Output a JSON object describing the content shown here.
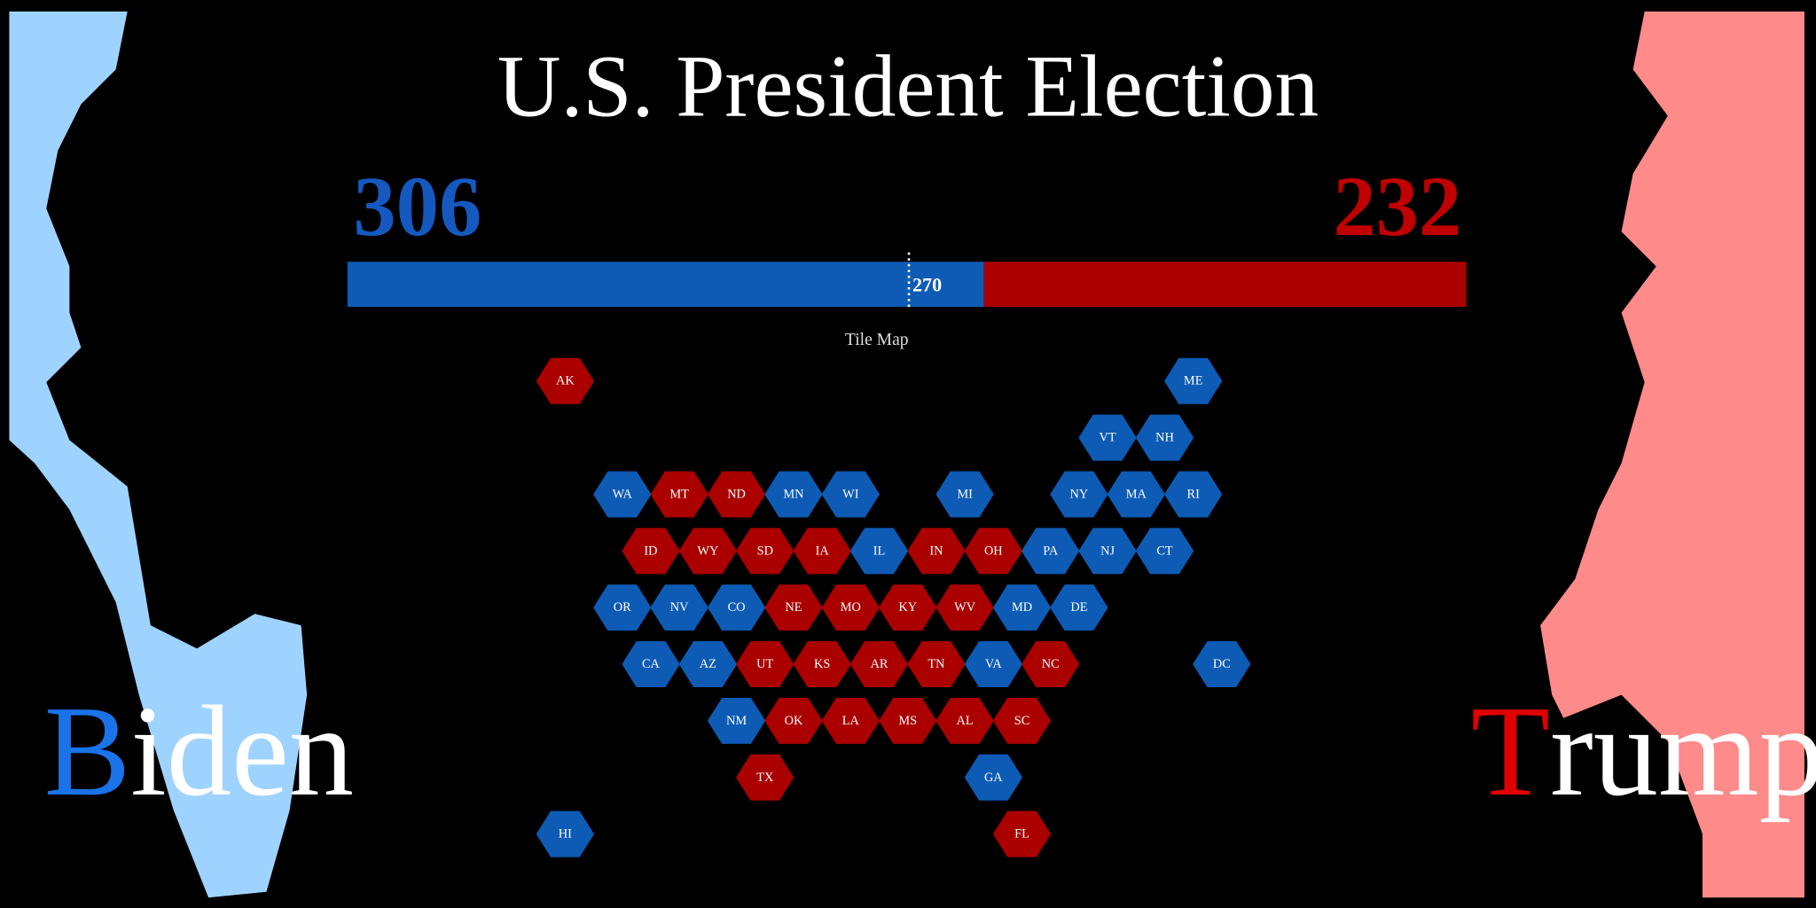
{
  "header": {
    "title": "U.S. President Election"
  },
  "candidates": [
    {
      "name": "Biden",
      "votes": 306,
      "bar_color": "#0d5bb5",
      "accent_color": "#1a73e8",
      "portrait_color": "#9fd3ff"
    },
    {
      "name": "Trump",
      "votes": 232,
      "bar_color": "#aa0000",
      "accent_color": "#e00000",
      "portrait_color": "#ff8a8a"
    }
  ],
  "threshold": {
    "value": 270
  },
  "map": {
    "title": "Tile Map",
    "tiles": [
      {
        "label": "AK",
        "color": "#aa0000"
      },
      {
        "label": "ME",
        "color": "#0d5bb5"
      },
      {
        "label": "VT",
        "color": "#0d5bb5"
      },
      {
        "label": "NH",
        "color": "#0d5bb5"
      },
      {
        "label": "WA",
        "color": "#0d5bb5"
      },
      {
        "label": "MT",
        "color": "#aa0000"
      },
      {
        "label": "ND",
        "color": "#aa0000"
      },
      {
        "label": "MN",
        "color": "#0d5bb5"
      },
      {
        "label": "WI",
        "color": "#0d5bb5"
      },
      {
        "label": "MI",
        "color": "#0d5bb5"
      },
      {
        "label": "NY",
        "color": "#0d5bb5"
      },
      {
        "label": "MA",
        "color": "#0d5bb5"
      },
      {
        "label": "RI",
        "color": "#0d5bb5"
      },
      {
        "label": "ID",
        "color": "#aa0000"
      },
      {
        "label": "WY",
        "color": "#aa0000"
      },
      {
        "label": "SD",
        "color": "#aa0000"
      },
      {
        "label": "IA",
        "color": "#aa0000"
      },
      {
        "label": "IL",
        "color": "#0d5bb5"
      },
      {
        "label": "IN",
        "color": "#aa0000"
      },
      {
        "label": "OH",
        "color": "#aa0000"
      },
      {
        "label": "PA",
        "color": "#0d5bb5"
      },
      {
        "label": "NJ",
        "color": "#0d5bb5"
      },
      {
        "label": "CT",
        "color": "#0d5bb5"
      },
      {
        "label": "OR",
        "color": "#0d5bb5"
      },
      {
        "label": "NV",
        "color": "#0d5bb5"
      },
      {
        "label": "CO",
        "color": "#0d5bb5"
      },
      {
        "label": "NE",
        "color": "#aa0000"
      },
      {
        "label": "MO",
        "color": "#aa0000"
      },
      {
        "label": "KY",
        "color": "#aa0000"
      },
      {
        "label": "WV",
        "color": "#aa0000"
      },
      {
        "label": "MD",
        "color": "#0d5bb5"
      },
      {
        "label": "DE",
        "color": "#0d5bb5"
      },
      {
        "label": "CA",
        "color": "#0d5bb5"
      },
      {
        "label": "AZ",
        "color": "#0d5bb5"
      },
      {
        "label": "UT",
        "color": "#aa0000"
      },
      {
        "label": "KS",
        "color": "#aa0000"
      },
      {
        "label": "AR",
        "color": "#aa0000"
      },
      {
        "label": "TN",
        "color": "#aa0000"
      },
      {
        "label": "VA",
        "color": "#0d5bb5"
      },
      {
        "label": "NC",
        "color": "#aa0000"
      },
      {
        "label": "DC",
        "color": "#0d5bb5"
      },
      {
        "label": "NM",
        "color": "#0d5bb5"
      },
      {
        "label": "OK",
        "color": "#aa0000"
      },
      {
        "label": "LA",
        "color": "#aa0000"
      },
      {
        "label": "MS",
        "color": "#aa0000"
      },
      {
        "label": "AL",
        "color": "#aa0000"
      },
      {
        "label": "SC",
        "color": "#aa0000"
      },
      {
        "label": "TX",
        "color": "#aa0000"
      },
      {
        "label": "GA",
        "color": "#0d5bb5"
      },
      {
        "label": "HI",
        "color": "#0d5bb5"
      },
      {
        "label": "FL",
        "color": "#aa0000"
      }
    ]
  }
}
